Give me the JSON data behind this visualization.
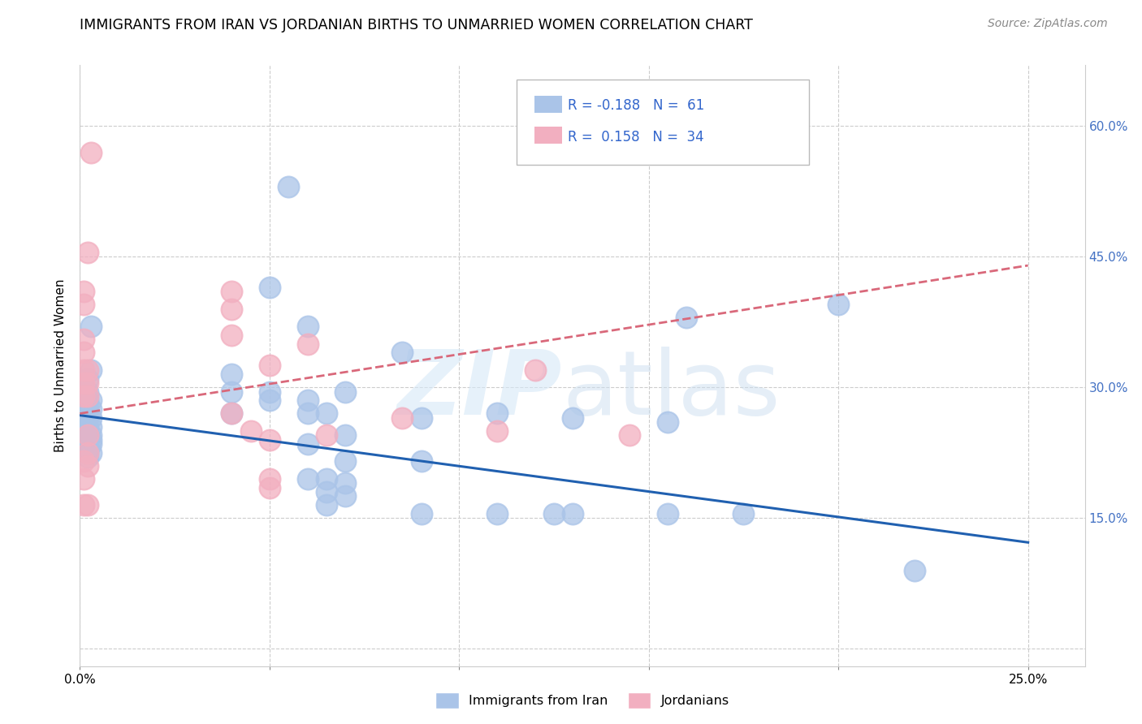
{
  "title": "IMMIGRANTS FROM IRAN VS JORDANIAN BIRTHS TO UNMARRIED WOMEN CORRELATION CHART",
  "source": "Source: ZipAtlas.com",
  "ylabel_left": "Births to Unmarried Women",
  "legend_labels": [
    "Immigrants from Iran",
    "Jordanians"
  ],
  "x_ticks": [
    0.0,
    0.05,
    0.1,
    0.15,
    0.2,
    0.25
  ],
  "x_tick_labels": [
    "0.0%",
    "",
    "",
    "",
    "",
    "25.0%"
  ],
  "y_ticks": [
    0.0,
    0.15,
    0.3,
    0.45,
    0.6
  ],
  "y_tick_labels_right": [
    "",
    "15.0%",
    "30.0%",
    "45.0%",
    "60.0%"
  ],
  "xlim": [
    0.0,
    0.265
  ],
  "ylim": [
    -0.02,
    0.67
  ],
  "background_color": "#ffffff",
  "grid_color": "#cccccc",
  "iran_color": "#aac4e8",
  "jordan_color": "#f2afc0",
  "iran_line_color": "#2060b0",
  "jordan_line_color": "#d9687a",
  "iran_dots": [
    [
      0.001,
      0.295
    ],
    [
      0.001,
      0.275
    ],
    [
      0.001,
      0.26
    ],
    [
      0.001,
      0.245
    ],
    [
      0.002,
      0.31
    ],
    [
      0.002,
      0.295
    ],
    [
      0.002,
      0.285
    ],
    [
      0.002,
      0.275
    ],
    [
      0.002,
      0.265
    ],
    [
      0.002,
      0.255
    ],
    [
      0.002,
      0.245
    ],
    [
      0.002,
      0.24
    ],
    [
      0.002,
      0.235
    ],
    [
      0.002,
      0.23
    ],
    [
      0.002,
      0.225
    ],
    [
      0.002,
      0.22
    ],
    [
      0.003,
      0.37
    ],
    [
      0.003,
      0.32
    ],
    [
      0.003,
      0.285
    ],
    [
      0.003,
      0.275
    ],
    [
      0.003,
      0.265
    ],
    [
      0.003,
      0.255
    ],
    [
      0.003,
      0.245
    ],
    [
      0.003,
      0.24
    ],
    [
      0.003,
      0.235
    ],
    [
      0.003,
      0.225
    ],
    [
      0.04,
      0.315
    ],
    [
      0.04,
      0.295
    ],
    [
      0.04,
      0.27
    ],
    [
      0.05,
      0.415
    ],
    [
      0.05,
      0.295
    ],
    [
      0.05,
      0.285
    ],
    [
      0.055,
      0.53
    ],
    [
      0.06,
      0.37
    ],
    [
      0.06,
      0.285
    ],
    [
      0.06,
      0.27
    ],
    [
      0.06,
      0.235
    ],
    [
      0.06,
      0.195
    ],
    [
      0.065,
      0.27
    ],
    [
      0.065,
      0.195
    ],
    [
      0.065,
      0.18
    ],
    [
      0.065,
      0.165
    ],
    [
      0.07,
      0.295
    ],
    [
      0.07,
      0.245
    ],
    [
      0.07,
      0.215
    ],
    [
      0.07,
      0.19
    ],
    [
      0.07,
      0.175
    ],
    [
      0.085,
      0.34
    ],
    [
      0.09,
      0.265
    ],
    [
      0.09,
      0.215
    ],
    [
      0.09,
      0.155
    ],
    [
      0.11,
      0.27
    ],
    [
      0.11,
      0.155
    ],
    [
      0.125,
      0.155
    ],
    [
      0.13,
      0.265
    ],
    [
      0.13,
      0.155
    ],
    [
      0.155,
      0.26
    ],
    [
      0.155,
      0.155
    ],
    [
      0.16,
      0.38
    ],
    [
      0.175,
      0.155
    ],
    [
      0.2,
      0.395
    ],
    [
      0.22,
      0.09
    ]
  ],
  "jordan_dots": [
    [
      0.001,
      0.41
    ],
    [
      0.001,
      0.395
    ],
    [
      0.001,
      0.355
    ],
    [
      0.001,
      0.34
    ],
    [
      0.001,
      0.32
    ],
    [
      0.001,
      0.305
    ],
    [
      0.001,
      0.29
    ],
    [
      0.001,
      0.215
    ],
    [
      0.001,
      0.195
    ],
    [
      0.001,
      0.165
    ],
    [
      0.002,
      0.455
    ],
    [
      0.002,
      0.32
    ],
    [
      0.002,
      0.305
    ],
    [
      0.002,
      0.29
    ],
    [
      0.002,
      0.245
    ],
    [
      0.002,
      0.225
    ],
    [
      0.002,
      0.21
    ],
    [
      0.002,
      0.165
    ],
    [
      0.003,
      0.57
    ],
    [
      0.04,
      0.41
    ],
    [
      0.04,
      0.39
    ],
    [
      0.04,
      0.36
    ],
    [
      0.04,
      0.27
    ],
    [
      0.045,
      0.25
    ],
    [
      0.05,
      0.325
    ],
    [
      0.05,
      0.24
    ],
    [
      0.05,
      0.195
    ],
    [
      0.05,
      0.185
    ],
    [
      0.06,
      0.35
    ],
    [
      0.065,
      0.245
    ],
    [
      0.085,
      0.265
    ],
    [
      0.11,
      0.25
    ],
    [
      0.12,
      0.32
    ],
    [
      0.145,
      0.245
    ]
  ],
  "iran_trendline": [
    [
      0.0,
      0.268
    ],
    [
      0.25,
      0.122
    ]
  ],
  "jordan_trendline": [
    [
      0.0,
      0.27
    ],
    [
      0.25,
      0.44
    ]
  ]
}
